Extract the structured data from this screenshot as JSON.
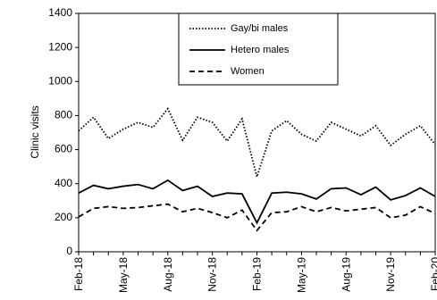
{
  "chart_data": {
    "type": "line",
    "y_label": "Clinic visits",
    "categories": [
      "Feb-18",
      null,
      null,
      "May-18",
      null,
      null,
      "Aug-18",
      null,
      null,
      "Nov-18",
      null,
      null,
      "Feb-19",
      null,
      null,
      "May-19",
      null,
      null,
      "Aug-19",
      null,
      null,
      "Nov-19",
      null,
      null,
      "Feb-20"
    ],
    "series": [
      {
        "name": "Gay/bi males",
        "color": "#000000",
        "dash": "dotted",
        "values": [
          710,
          790,
          665,
          720,
          760,
          730,
          840,
          655,
          790,
          760,
          650,
          780,
          440,
          710,
          770,
          690,
          650,
          760,
          720,
          680,
          740,
          625,
          690,
          740,
          630
        ]
      },
      {
        "name": "Hetero males",
        "color": "#000000",
        "dash": "solid",
        "values": [
          345,
          390,
          370,
          385,
          395,
          370,
          420,
          360,
          385,
          325,
          345,
          340,
          170,
          345,
          350,
          340,
          310,
          370,
          375,
          335,
          380,
          305,
          330,
          375,
          325
        ]
      },
      {
        "name": "Women",
        "color": "#000000",
        "dash": "dashed",
        "values": [
          205,
          255,
          265,
          255,
          260,
          270,
          280,
          235,
          255,
          230,
          200,
          245,
          125,
          230,
          235,
          265,
          235,
          260,
          240,
          250,
          260,
          200,
          215,
          265,
          225
        ]
      }
    ],
    "ylim": [
      0,
      1400
    ],
    "yticks": [
      0,
      200,
      400,
      600,
      800,
      1000,
      1200,
      1400
    ],
    "grid": false,
    "legend": "top"
  }
}
